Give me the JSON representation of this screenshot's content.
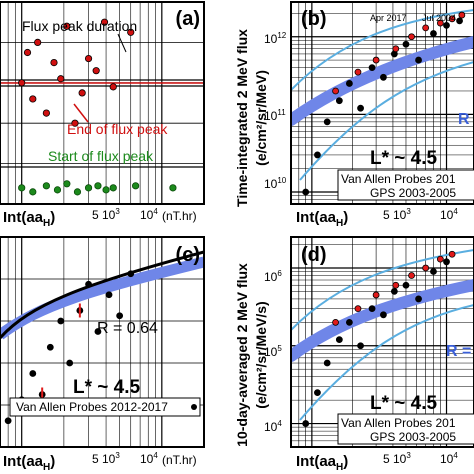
{
  "chart_data": [
    {
      "panel": "(a)",
      "type": "scatter",
      "xlabel": "Int(aa_H)",
      "xunit": "(nT.hr)",
      "x_ticks": [
        "5 10^3",
        "10^4"
      ],
      "annotations": [
        "Flux peak duration",
        "End of flux peak",
        "Start of flux peak"
      ],
      "colors": {
        "end": "#d01010",
        "start": "#1c8a1c",
        "duration": "#000000"
      },
      "series": [
        {
          "name": "End of flux peak",
          "x": [
            1000,
            1100,
            1200,
            1300,
            1500,
            1700,
            1900,
            2100,
            2400,
            2700,
            3000,
            3400,
            3900,
            4500,
            6000
          ],
          "y": [
            60,
            75,
            52,
            80,
            45,
            70,
            62,
            88,
            40,
            55,
            72,
            66,
            90,
            58,
            85
          ]
        },
        {
          "name": "Start of flux peak",
          "x": [
            1000,
            1200,
            1500,
            1800,
            2100,
            2500,
            3000,
            3500,
            4000,
            4500,
            6500,
            12000
          ],
          "y": [
            8,
            6,
            9,
            7,
            10,
            6,
            8,
            9,
            7,
            8,
            9,
            8
          ]
        }
      ]
    },
    {
      "panel": "(b)",
      "type": "scatter",
      "ylabel": "Time-integrated 2 MeV flux",
      "yunit": "(e/cm²/sr/MeV)",
      "xlabel": "Int(aa_H)",
      "yscale": "log",
      "y_ticks": [
        "10^10",
        "10^11",
        "10^12"
      ],
      "annotations": [
        "Apr 2017",
        "Jul 2004",
        "L* ~ 4.5",
        "R"
      ],
      "legend": [
        "Van Allen Probes 201",
        "GPS 2003-2005"
      ],
      "colors": {
        "fit": "#6f86e8",
        "envelope": "#5aaee0",
        "gps": "#000000",
        "vap": "#e01a1a"
      },
      "series": [
        {
          "name": "Van Allen Probes 201",
          "x": [
            1500,
            2200,
            3000,
            4200,
            5500,
            7000,
            9000,
            11000,
            13000
          ],
          "y": [
            200000000000.0,
            350000000000.0,
            500000000000.0,
            700000000000.0,
            1000000000000.0,
            1300000000000.0,
            1500000000000.0,
            1700000000000.0,
            1900000000000.0
          ]
        },
        {
          "name": "GPS 2003-2005",
          "x": [
            900,
            1100,
            1300,
            1600,
            1900,
            2300,
            2800,
            3400,
            4100,
            5000,
            6200,
            8000,
            10000,
            12500
          ],
          "y": [
            10000000000.0,
            30000000000.0,
            80000000000.0,
            150000000000.0,
            250000000000.0,
            120000000000.0,
            400000000000.0,
            300000000000.0,
            600000000000.0,
            800000000000.0,
            500000000000.0,
            1100000000000.0,
            1400000000000.0,
            1600000000000.0
          ]
        }
      ]
    },
    {
      "panel": "(c)",
      "type": "scatter",
      "xlabel": "Int(aa_H)",
      "xunit": "(nT.hr)",
      "x_ticks": [
        "5 10^3",
        "10^4"
      ],
      "annotations": [
        "R = 0.64",
        "L* ~ 4.5"
      ],
      "legend": [
        "Van Allen Probes 2012-2017"
      ],
      "colors": {
        "fit": "#6f86e8",
        "data": "#000000",
        "errorbar": "#e01a1a"
      },
      "series": [
        {
          "name": "Van Allen Probes 2012-2017",
          "x": [
            800,
            1000,
            1200,
            1400,
            1600,
            1900,
            2200,
            2600,
            3000,
            3500,
            4200,
            5000,
            6000
          ],
          "y": [
            0.5,
            0.9,
            1.4,
            1.0,
            1.9,
            2.4,
            1.6,
            2.6,
            3.1,
            2.2,
            2.9,
            2.5,
            3.3
          ]
        }
      ]
    },
    {
      "panel": "(d)",
      "type": "scatter",
      "ylabel": "10-day-averaged 2 MeV flux",
      "yunit": "(e/cm²/sr/MeV/s)",
      "xlabel": "Int(aa_H)",
      "yscale": "log",
      "y_ticks": [
        "10^4",
        "10^5",
        "10^6"
      ],
      "annotations": [
        "L* ~ 4.5",
        "R ="
      ],
      "legend": [
        "Van Allen Probes 201",
        "GPS 2003-2005"
      ],
      "colors": {
        "fit": "#6f86e8",
        "envelope": "#5aaee0",
        "gps": "#000000",
        "vap": "#e01a1a"
      },
      "series": [
        {
          "name": "Van Allen Probes 201",
          "x": [
            1500,
            2200,
            3000,
            4200,
            5500,
            7000,
            9000,
            11000
          ],
          "y": [
            200000.0,
            300000.0,
            450000.0,
            600000.0,
            800000.0,
            1000000.0,
            1300000.0,
            1500000.0
          ]
        },
        {
          "name": "GPS 2003-2005",
          "x": [
            900,
            1100,
            1300,
            1600,
            1900,
            2300,
            2800,
            3400,
            4100,
            5000,
            6200,
            8000,
            10000
          ],
          "y": [
            10000.0,
            25000.0,
            60000.0,
            120000.0,
            200000.0,
            100000.0,
            300000.0,
            250000.0,
            500000.0,
            600000.0,
            400000.0,
            900000.0,
            1200000.0
          ]
        }
      ]
    }
  ],
  "labels": {
    "a": {
      "panel": "(a)",
      "duration": "Flux peak duration",
      "end": "End of flux peak",
      "start": "Start of flux peak",
      "xlabel": "Int(aa",
      "xsub": "H",
      "xunit": "(nT.hr)",
      "t5": "5 10",
      "t5e": "3",
      "t4": "10",
      "t4e": "4"
    },
    "b": {
      "panel": "(b)",
      "apr": "Apr 2017",
      "jul": "Jul 2004",
      "ylabel": "Time-integrated 2 MeV flux",
      "yunit": "(e/cm²/sr/MeV)",
      "ylo": "10",
      "ylo_e": "10",
      "ymid": "10",
      "ymid_e": "11",
      "yhi": "10",
      "yhi_e": "12",
      "lstar": "L* ~ 4.5",
      "r": "R",
      "leg1": "Van Allen Probes 201",
      "leg2": "GPS 2003-2005",
      "xlabel": "Int(aa",
      "xsub": "H",
      "t5": "5 10",
      "t5e": "3",
      "t4": "10",
      "t4e": "4"
    },
    "c": {
      "panel": "(c)",
      "r": "R = 0.64",
      "lstar": "L* ~ 4.5",
      "leg": "Van Allen Probes 2012-2017",
      "xlabel": "Int(aa",
      "xsub": "H",
      "xunit": "(nT.hr)",
      "t5": "5 10",
      "t5e": "3",
      "t4": "10",
      "t4e": "4"
    },
    "d": {
      "panel": "(d)",
      "ylabel": "10-day-averaged 2 MeV flux",
      "yunit": "(e/cm²/sr/MeV/s)",
      "ylo": "10",
      "ylo_e": "4",
      "ymid": "10",
      "ymid_e": "5",
      "yhi": "10",
      "yhi_e": "6",
      "lstar": "L* ~ 4.5",
      "r": "R =",
      "leg1": "Van Allen Probes 201",
      "leg2": "GPS 2003-2005",
      "xlabel": "Int(aa",
      "xsub": "H",
      "t5": "5 10",
      "t5e": "3",
      "t4": "10",
      "t4e": "4"
    }
  }
}
